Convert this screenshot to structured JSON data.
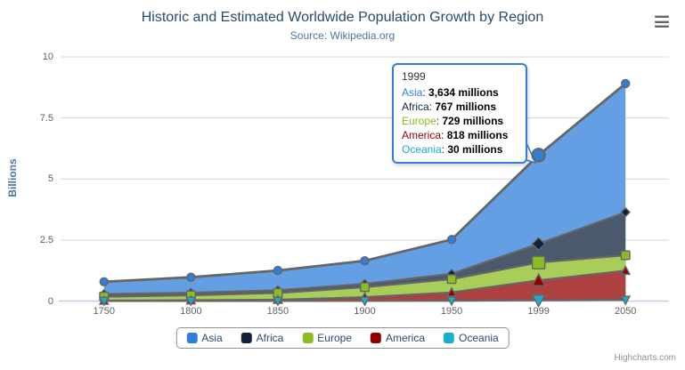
{
  "header": {
    "title": "Historic and Estimated Worldwide Population Growth by Region",
    "subtitle": "Source: Wikipedia.org"
  },
  "chart_data": {
    "type": "area",
    "stacking": "normal",
    "title": "Historic and Estimated Worldwide Population Growth by Region",
    "subtitle": "Source: Wikipedia.org",
    "categories": [
      "1750",
      "1800",
      "1850",
      "1900",
      "1950",
      "1999",
      "2050"
    ],
    "series": [
      {
        "name": "Asia",
        "color": "#2f7ed8",
        "fill_blended": "#639fe2",
        "marker": "circle",
        "values": [
          502,
          635,
          809,
          947,
          1402,
          3634,
          5268
        ]
      },
      {
        "name": "Africa",
        "color": "#0d233a",
        "fill_blended": "#4a5a6c",
        "marker": "diamond",
        "values": [
          106,
          107,
          111,
          133,
          221,
          767,
          1766
        ]
      },
      {
        "name": "Europe",
        "color": "#8bbc21",
        "fill_blended": "#a8cd59",
        "marker": "square",
        "values": [
          163,
          203,
          276,
          408,
          547,
          729,
          628
        ]
      },
      {
        "name": "America",
        "color": "#910000",
        "fill_blended": "#ad4040",
        "marker": "triangle",
        "values": [
          18,
          31,
          54,
          156,
          339,
          818,
          1201
        ]
      },
      {
        "name": "Oceania",
        "color": "#1aadce",
        "fill_blended": "#53c2da",
        "marker": "triangle-down",
        "values": [
          2,
          2,
          2,
          6,
          13,
          30,
          46
        ]
      }
    ],
    "unit": "millions",
    "ylabel": "Billions",
    "yticks": [
      0,
      2.5,
      5,
      7.5,
      10
    ],
    "ylim": [
      0,
      10
    ],
    "grid": "horizontal",
    "legend_position": "bottom",
    "hover_category": "1999",
    "hover_index": 5
  },
  "tooltip": {
    "header": "1999",
    "rows": [
      {
        "name": "Asia",
        "color": "#2f7ed8",
        "value": "3,634 millions"
      },
      {
        "name": "Africa",
        "color": "#0d233a",
        "value": "767 millions"
      },
      {
        "name": "Europe",
        "color": "#8bbc21",
        "value": "729 millions"
      },
      {
        "name": "America",
        "color": "#910000",
        "value": "818 millions"
      },
      {
        "name": "Oceania",
        "color": "#1aadce",
        "value": "30 millions"
      }
    ]
  },
  "colors": {
    "title": "#274b6d",
    "subtitle": "#4d759e",
    "axis_labels": "#606060",
    "axis_title": "#4d759e",
    "axis_line": "#c0d0e0",
    "gridline": "#d8d8d8",
    "series_outline": "#666666",
    "tooltip_border": "#2f7ed8",
    "legend_border": "#909090",
    "legend_text": "#274b6d",
    "credits_text": "#909090"
  },
  "icons": {
    "context_menu": "hamburger-menu-icon"
  },
  "credits": {
    "label": "Highcharts.com"
  }
}
